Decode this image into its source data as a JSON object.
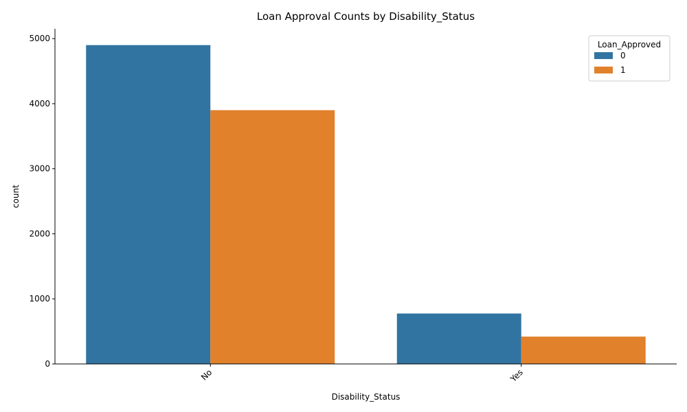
{
  "chart_data": {
    "type": "bar",
    "title": "Loan Approval Counts by Disability_Status",
    "xlabel": "Disability_Status",
    "ylabel": "count",
    "categories": [
      "No",
      "Yes"
    ],
    "series": [
      {
        "name": "0",
        "values": [
          4900,
          775
        ],
        "color": "#3274a1"
      },
      {
        "name": "1",
        "values": [
          3900,
          420
        ],
        "color": "#e1812c"
      }
    ],
    "ylim": [
      0,
      5150
    ],
    "yticks": [
      0,
      1000,
      2000,
      3000,
      4000,
      5000
    ],
    "legend": {
      "title": "Loan_Approved",
      "position": "top-right"
    },
    "grid": false,
    "xtick_rotation": "45"
  }
}
